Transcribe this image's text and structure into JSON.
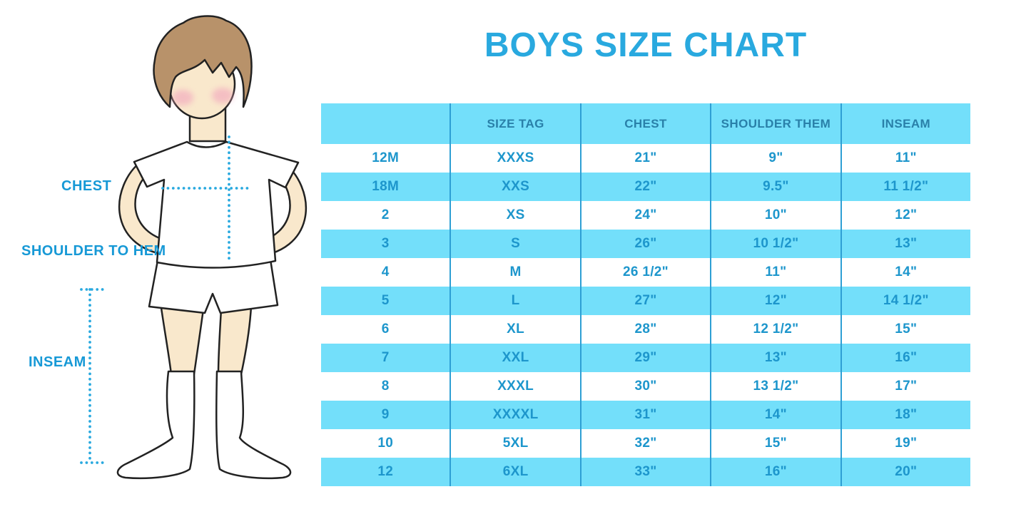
{
  "title": "BOYS SIZE CHART",
  "figure": {
    "labels": {
      "chest": "CHEST",
      "shoulder_to_hem": "SHOULDER TO HEM",
      "inseam": "INSEAM"
    }
  },
  "chart_data": {
    "type": "table",
    "title": "BOYS SIZE CHART",
    "columns": [
      "",
      "SIZE TAG",
      "CHEST",
      "SHOULDER THEM",
      "INSEAM"
    ],
    "rows": [
      [
        "12M",
        "XXXS",
        "21\"",
        "9\"",
        "11\""
      ],
      [
        "18M",
        "XXS",
        "22\"",
        "9.5\"",
        "11 1/2\""
      ],
      [
        "2",
        "XS",
        "24\"",
        "10\"",
        "12\""
      ],
      [
        "3",
        "S",
        "26\"",
        "10 1/2\"",
        "13\""
      ],
      [
        "4",
        "M",
        "26 1/2\"",
        "11\"",
        "14\""
      ],
      [
        "5",
        "L",
        "27\"",
        "12\"",
        "14 1/2\""
      ],
      [
        "6",
        "XL",
        "28\"",
        "12 1/2\"",
        "15\""
      ],
      [
        "7",
        "XXL",
        "29\"",
        "13\"",
        "16\""
      ],
      [
        "8",
        "XXXL",
        "30\"",
        "13 1/2\"",
        "17\""
      ],
      [
        "9",
        "XXXXL",
        "31\"",
        "14\"",
        "18\""
      ],
      [
        "10",
        "5XL",
        "32\"",
        "15\"",
        "19\""
      ],
      [
        "12",
        "6XL",
        "33\"",
        "16\"",
        "20\""
      ]
    ],
    "row_stripe_pattern": "white, cyan alternating starting white",
    "measurement_annotations": [
      "CHEST",
      "SHOULDER TO HEM",
      "INSEAM"
    ]
  },
  "colors": {
    "accent_title": "#29A9DF",
    "band_cyan": "#73DFFA",
    "column_line": "#2E9FD4",
    "cell_text": "#1D96CC",
    "header_text": "#2980A9",
    "label_text": "#1799D6",
    "dotted_line": "#29A9DF",
    "skin": "#F9E8CC",
    "hair": "#B8926A",
    "blush": "#F2A9BE"
  }
}
